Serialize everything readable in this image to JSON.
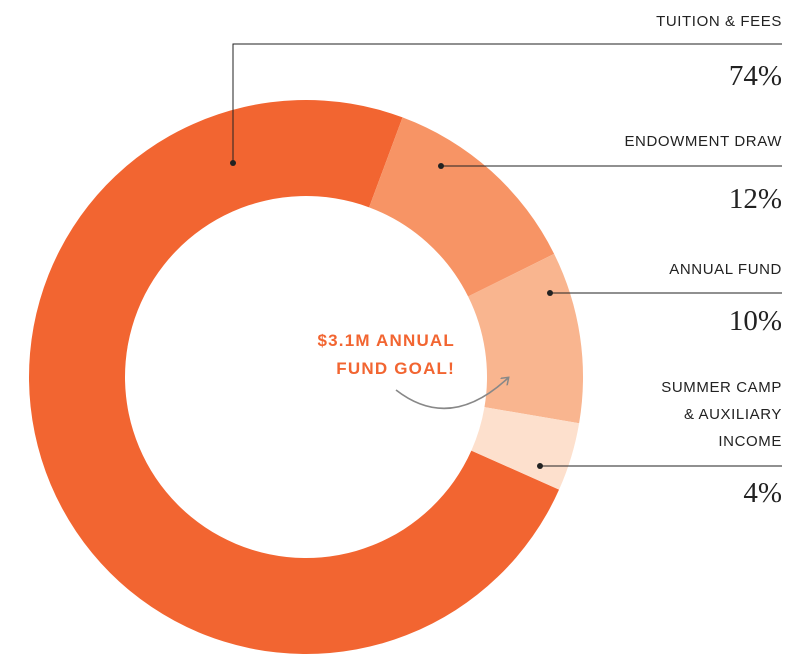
{
  "chart_data": {
    "type": "donut",
    "categories": [
      "TUITION & FEES",
      "ENDOWMENT DRAW",
      "ANNUAL FUND",
      "SUMMER CAMP & AUXILIARY INCOME"
    ],
    "values": [
      74,
      12,
      10,
      4
    ],
    "value_labels": [
      "74%",
      "12%",
      "10%",
      "4%"
    ],
    "colors": [
      "#f26531",
      "#f79465",
      "#f9b58f",
      "#fde0cd"
    ],
    "annotation": "$3.1M ANNUAL FUND GOAL!"
  }
}
